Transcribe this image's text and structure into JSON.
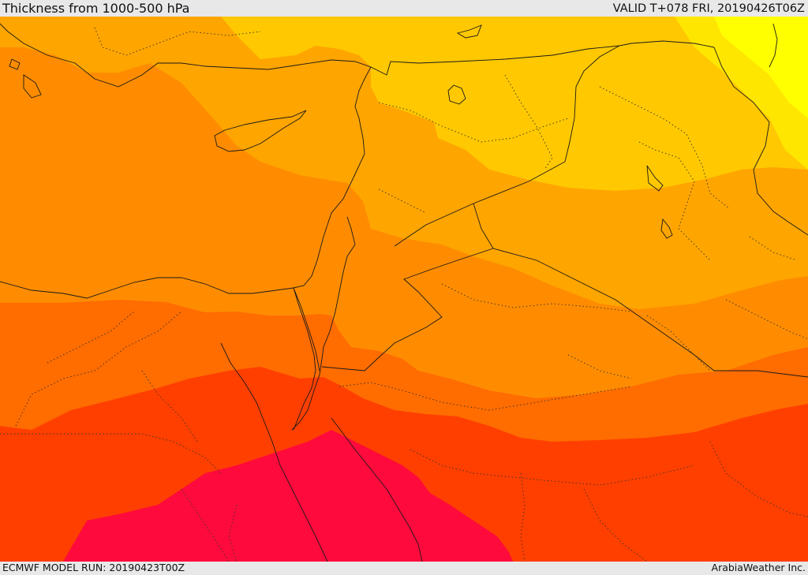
{
  "header": {
    "title": "Thickness from 1000-500 hPa",
    "valid": "VALID T+078 FRI, 20190426T06Z"
  },
  "footer": {
    "model_run": "ECMWF MODEL RUN: 20190423T00Z",
    "credit": "ArabiaWeather Inc."
  },
  "map": {
    "field": "1000-500 hPa thickness",
    "color_bands": [
      {
        "name": "band-1",
        "color": "#ff0a3c"
      },
      {
        "name": "band-2",
        "color": "#ff3f00"
      },
      {
        "name": "band-3",
        "color": "#ff6c00"
      },
      {
        "name": "band-4",
        "color": "#ff8c00"
      },
      {
        "name": "band-5",
        "color": "#ffa500"
      },
      {
        "name": "band-6",
        "color": "#ffc800"
      },
      {
        "name": "band-7",
        "color": "#ffe600"
      },
      {
        "name": "band-8",
        "color": "#ffff00"
      }
    ]
  }
}
